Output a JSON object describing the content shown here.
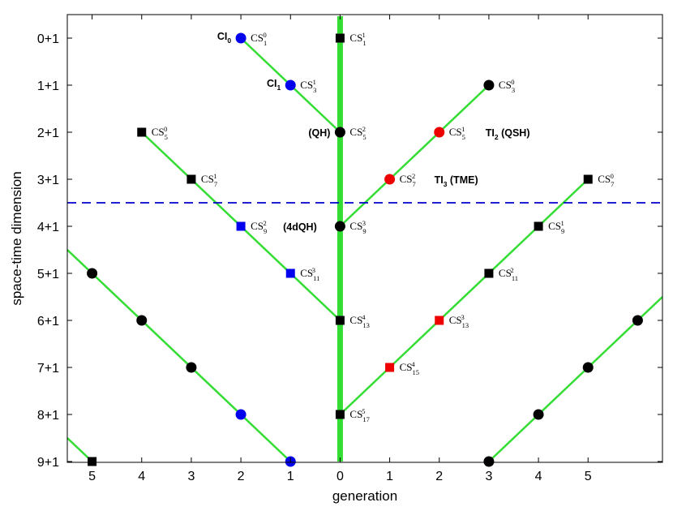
{
  "chart_data": {
    "type": "scatter",
    "xlabel": "generation",
    "ylabel": "space-time dimension",
    "x_tick_labels": [
      "5",
      "4",
      "3",
      "2",
      "1",
      "0",
      "1",
      "2",
      "3",
      "4",
      "5"
    ],
    "y_tick_labels": [
      "0+1",
      "1+1",
      "2+1",
      "3+1",
      "4+1",
      "5+1",
      "6+1",
      "7+1",
      "8+1",
      "9+1"
    ],
    "xlim": [
      -5.5,
      6.5
    ],
    "ylim": [
      0,
      9
    ],
    "grid": false,
    "colors": {
      "line": "#33dd33",
      "dashed": "#0000cc",
      "black": "#000000",
      "blue": "#0000ee",
      "red": "#ee0000"
    },
    "dashed_line": {
      "y": 3.5
    },
    "vertical_line": {
      "x": 0
    },
    "lines": [
      {
        "points": [
          [
            -2,
            0
          ],
          [
            0,
            2
          ]
        ]
      },
      {
        "points": [
          [
            0,
            4
          ],
          [
            3,
            1
          ]
        ]
      },
      {
        "points": [
          [
            -4,
            2
          ],
          [
            0,
            6
          ]
        ]
      },
      {
        "points": [
          [
            0,
            8
          ],
          [
            5,
            3
          ]
        ]
      },
      {
        "points": [
          [
            -5.5,
            4.5
          ],
          [
            -1,
            9
          ]
        ]
      },
      {
        "points": [
          [
            -5.5,
            8.5
          ],
          [
            -5,
            9
          ]
        ]
      },
      {
        "points": [
          [
            3,
            9
          ],
          [
            6.5,
            5.5
          ]
        ]
      }
    ],
    "points": [
      {
        "x": 0,
        "y": 0,
        "shape": "square",
        "color": "black",
        "cs": {
          "sup": "1",
          "sub": "1"
        }
      },
      {
        "x": -2,
        "y": 0,
        "shape": "circle",
        "color": "blue",
        "cs": {
          "sup": "0",
          "sub": "1"
        },
        "annotation": {
          "main": "CI",
          "sub": "0"
        }
      },
      {
        "x": -1,
        "y": 1,
        "shape": "circle",
        "color": "blue",
        "cs": {
          "sup": "1",
          "sub": "3"
        },
        "annotation": {
          "main": "CI",
          "sub": "1"
        }
      },
      {
        "x": 3,
        "y": 1,
        "shape": "circle",
        "color": "black",
        "cs": {
          "sup": "0",
          "sub": "3"
        }
      },
      {
        "x": -4,
        "y": 2,
        "shape": "square",
        "color": "black",
        "cs": {
          "sup": "0",
          "sub": "5"
        }
      },
      {
        "x": 0,
        "y": 2,
        "shape": "circle",
        "color": "black",
        "cs": {
          "sup": "2",
          "sub": "5"
        },
        "annotation": {
          "main": "(QH)",
          "sub": ""
        }
      },
      {
        "x": 2,
        "y": 2,
        "shape": "circle",
        "color": "red",
        "cs": {
          "sup": "1",
          "sub": "5"
        },
        "annotation": {
          "main": "TI",
          "sub": "2",
          "post": " (QSH)"
        }
      },
      {
        "x": -3,
        "y": 3,
        "shape": "square",
        "color": "black",
        "cs": {
          "sup": "1",
          "sub": "7"
        }
      },
      {
        "x": 1,
        "y": 3,
        "shape": "circle",
        "color": "red",
        "cs": {
          "sup": "2",
          "sub": "7"
        },
        "annotation": {
          "main": "TI",
          "sub": "3",
          "post": " (TME)"
        }
      },
      {
        "x": 5,
        "y": 3,
        "shape": "square",
        "color": "black",
        "cs": {
          "sup": "0",
          "sub": "7"
        }
      },
      {
        "x": -2,
        "y": 4,
        "shape": "square",
        "color": "blue",
        "cs": {
          "sup": "2",
          "sub": "9"
        },
        "annotation": {
          "main": "(4dQH)",
          "sub": ""
        }
      },
      {
        "x": 0,
        "y": 4,
        "shape": "circle",
        "color": "black",
        "cs": {
          "sup": "3",
          "sub": "9"
        }
      },
      {
        "x": 4,
        "y": 4,
        "shape": "square",
        "color": "black",
        "cs": {
          "sup": "1",
          "sub": "9"
        }
      },
      {
        "x": -5,
        "y": 5,
        "shape": "circle",
        "color": "black"
      },
      {
        "x": -1,
        "y": 5,
        "shape": "square",
        "color": "blue",
        "cs": {
          "sup": "3",
          "sub": "11"
        }
      },
      {
        "x": 3,
        "y": 5,
        "shape": "square",
        "color": "black",
        "cs": {
          "sup": "2",
          "sub": "11"
        }
      },
      {
        "x": -4,
        "y": 6,
        "shape": "circle",
        "color": "black"
      },
      {
        "x": 0,
        "y": 6,
        "shape": "square",
        "color": "black",
        "cs": {
          "sup": "4",
          "sub": "13"
        }
      },
      {
        "x": 2,
        "y": 6,
        "shape": "square",
        "color": "red",
        "cs": {
          "sup": "3",
          "sub": "13"
        }
      },
      {
        "x": 6,
        "y": 6,
        "shape": "circle",
        "color": "black"
      },
      {
        "x": -3,
        "y": 7,
        "shape": "circle",
        "color": "black"
      },
      {
        "x": 1,
        "y": 7,
        "shape": "square",
        "color": "red",
        "cs": {
          "sup": "4",
          "sub": "15"
        }
      },
      {
        "x": 5,
        "y": 7,
        "shape": "circle",
        "color": "black"
      },
      {
        "x": -2,
        "y": 8,
        "shape": "circle",
        "color": "blue"
      },
      {
        "x": 0,
        "y": 8,
        "shape": "square",
        "color": "black",
        "cs": {
          "sup": "5",
          "sub": "17"
        }
      },
      {
        "x": 4,
        "y": 8,
        "shape": "circle",
        "color": "black"
      },
      {
        "x": -5,
        "y": 9,
        "shape": "square",
        "color": "black"
      },
      {
        "x": -1,
        "y": 9,
        "shape": "circle",
        "color": "blue"
      },
      {
        "x": 3,
        "y": 9,
        "shape": "circle",
        "color": "black"
      }
    ],
    "cs_prefix": "CS"
  }
}
